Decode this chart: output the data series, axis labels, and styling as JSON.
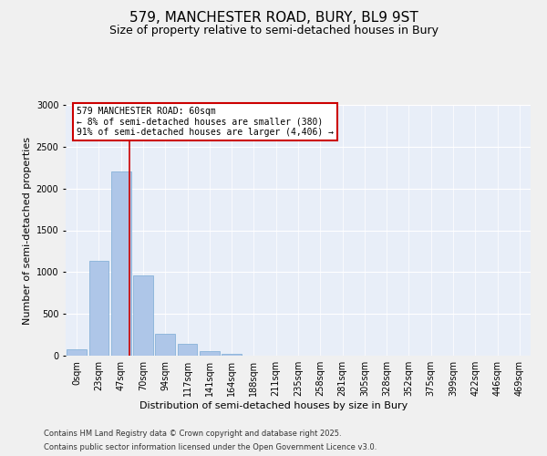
{
  "title": "579, MANCHESTER ROAD, BURY, BL9 9ST",
  "subtitle": "Size of property relative to semi-detached houses in Bury",
  "xlabel": "Distribution of semi-detached houses by size in Bury",
  "ylabel": "Number of semi-detached properties",
  "categories": [
    "0sqm",
    "23sqm",
    "47sqm",
    "70sqm",
    "94sqm",
    "117sqm",
    "141sqm",
    "164sqm",
    "188sqm",
    "211sqm",
    "235sqm",
    "258sqm",
    "281sqm",
    "305sqm",
    "328sqm",
    "352sqm",
    "375sqm",
    "399sqm",
    "422sqm",
    "446sqm",
    "469sqm"
  ],
  "bar_heights": [
    80,
    1130,
    2200,
    960,
    260,
    145,
    55,
    20,
    5,
    2,
    2,
    2,
    0,
    0,
    0,
    0,
    0,
    0,
    0,
    0,
    0
  ],
  "bar_color": "#aec6e8",
  "bar_edge_color": "#7aabd4",
  "background_color": "#e8eef8",
  "grid_color": "#ffffff",
  "vline_color": "#cc0000",
  "vline_x": 2.4,
  "annotation_title": "579 MANCHESTER ROAD: 60sqm",
  "annotation_line1": "← 8% of semi-detached houses are smaller (380)",
  "annotation_line2": "91% of semi-detached houses are larger (4,406) →",
  "annotation_box_color": "#ffffff",
  "annotation_edge_color": "#cc0000",
  "ylim": [
    0,
    3000
  ],
  "yticks": [
    0,
    500,
    1000,
    1500,
    2000,
    2500,
    3000
  ],
  "footer_line1": "Contains HM Land Registry data © Crown copyright and database right 2025.",
  "footer_line2": "Contains public sector information licensed under the Open Government Licence v3.0.",
  "title_fontsize": 11,
  "subtitle_fontsize": 9,
  "axis_label_fontsize": 8,
  "tick_fontsize": 7,
  "annotation_fontsize": 7,
  "footer_fontsize": 6
}
